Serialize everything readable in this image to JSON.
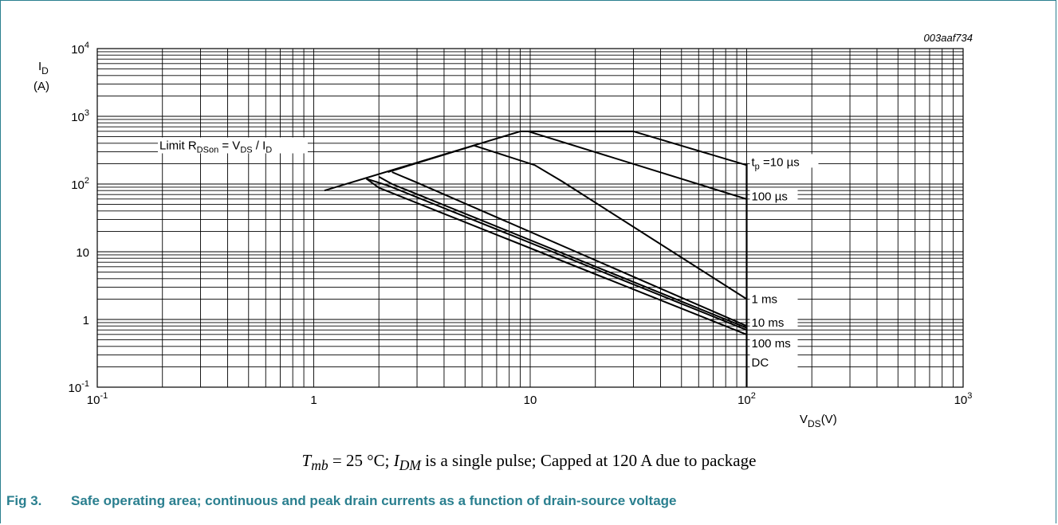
{
  "figure": {
    "code": "003aaf734",
    "caption_number": "Fig 3.",
    "caption_text": "Safe operating area; continuous and peak drain currents as a function of drain-source voltage",
    "note_parts": {
      "t_sym": "T",
      "t_sub": "mb",
      "t_rest": " = 25 °C; ",
      "i_sym": "I",
      "i_sub": "DM",
      "i_rest": " is a single pulse; Capped at 120 A due to package"
    }
  },
  "colors": {
    "accent": "#2a7f8f",
    "grid": "#000000",
    "curve": "#000000"
  },
  "chart_data": {
    "type": "line",
    "x_scale": "log",
    "y_scale": "log",
    "xlim": [
      0.1,
      1000
    ],
    "ylim": [
      0.1,
      10000
    ],
    "grid": true,
    "xlabel": {
      "main": "V",
      "sub": "DS",
      "unit": "(V)"
    },
    "ylabel": {
      "main": "I",
      "sub": "D",
      "unit": "(A)"
    },
    "x_ticks": [
      {
        "value": 0.1,
        "base": "10",
        "exp": "-1"
      },
      {
        "value": 1,
        "base": "1",
        "exp": ""
      },
      {
        "value": 10,
        "base": "10",
        "exp": ""
      },
      {
        "value": 100,
        "base": "10",
        "exp": "2"
      },
      {
        "value": 1000,
        "base": "10",
        "exp": "3"
      }
    ],
    "y_ticks": [
      {
        "value": 0.1,
        "base": "10",
        "exp": "-1"
      },
      {
        "value": 1,
        "base": "1",
        "exp": ""
      },
      {
        "value": 10,
        "base": "10",
        "exp": ""
      },
      {
        "value": 100,
        "base": "10",
        "exp": "2"
      },
      {
        "value": 1000,
        "base": "10",
        "exp": "3"
      },
      {
        "value": 10000,
        "base": "10",
        "exp": "4"
      }
    ],
    "annotation": {
      "text_main": "Limit R",
      "text_sub": "DSon",
      "text_mid": " = V",
      "text_sub2": "DS",
      "text_mid2": " / I",
      "text_sub3": "D",
      "x": 1.0,
      "y": 590
    },
    "vertical_limit": {
      "x": 100,
      "y_from": 0.1,
      "y_to": 200
    },
    "series": [
      {
        "name": "t_p = 10 µs",
        "label_parts": {
          "pre": "t",
          "sub": "p",
          "post": " =10 µs"
        },
        "label_y": 200,
        "points": [
          [
            1.12,
            80
          ],
          [
            9,
            600
          ],
          [
            30,
            600
          ],
          [
            100,
            190
          ]
        ]
      },
      {
        "name": "100 µs",
        "label_parts": {
          "pre": "",
          "sub": "",
          "post": "100 µs"
        },
        "label_y": 62,
        "points": [
          [
            9.8,
            600
          ],
          [
            100,
            60
          ]
        ]
      },
      {
        "name": "1 ms",
        "label_parts": {
          "pre": "",
          "sub": "",
          "post": "1 ms"
        },
        "label_y": 1.9,
        "points": [
          [
            2.2,
            150
          ],
          [
            5.5,
            370
          ],
          [
            10.5,
            190
          ],
          [
            14,
            110
          ],
          [
            100,
            2
          ]
        ]
      },
      {
        "name": "10 ms",
        "label_parts": {
          "pre": "",
          "sub": "",
          "post": "10 ms"
        },
        "label_y": 0.85,
        "points": [
          [
            2.3,
            150
          ],
          [
            3,
            105
          ],
          [
            100,
            0.8
          ]
        ]
      },
      {
        "name": "100 ms",
        "label_parts": {
          "pre": "",
          "sub": "",
          "post": "100 ms"
        },
        "label_y": 0.42,
        "points": [
          [
            1.75,
            120
          ],
          [
            2.2,
            95
          ],
          [
            100,
            0.7
          ]
        ]
      },
      {
        "name": "DC",
        "label_parts": {
          "pre": "",
          "sub": "",
          "post": "DC"
        },
        "label_y": 0.22,
        "points": [
          [
            1.75,
            120
          ],
          [
            2.0,
            88
          ],
          [
            100,
            0.6
          ]
        ]
      },
      {
        "name": "",
        "label_parts": {
          "pre": "",
          "sub": "",
          "post": ""
        },
        "label_y": null,
        "points": [
          [
            2.0,
            128
          ],
          [
            2.3,
            100
          ],
          [
            100,
            0.75
          ]
        ]
      }
    ]
  }
}
